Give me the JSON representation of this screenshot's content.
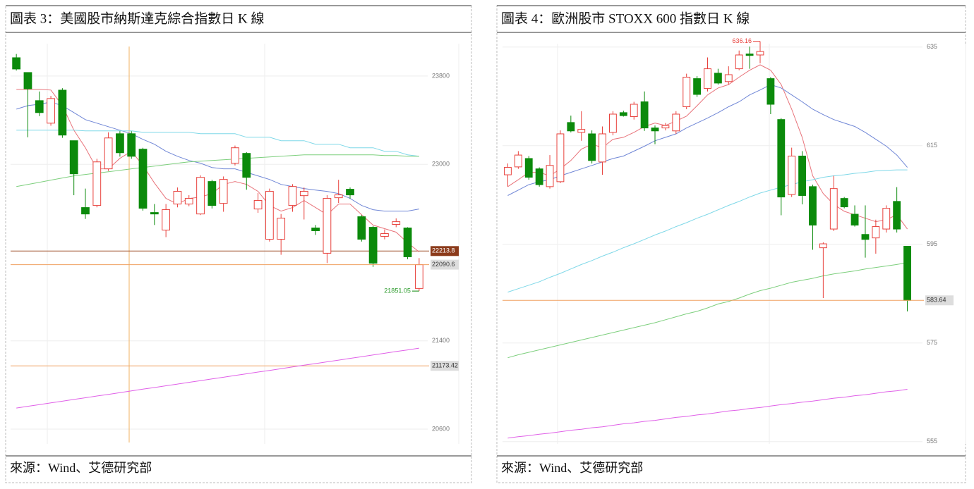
{
  "chart_data": [
    {
      "type": "candlestick",
      "title": "圖表 3：美國股市納斯達克綜合指數日 K 線",
      "source": "來源：Wind、艾德研究部",
      "ylim": [
        20402,
        24170
      ],
      "yticks": [
        20600,
        21400,
        23000,
        23800
      ],
      "grid": true,
      "up_color": "#e8413c",
      "down_color": "#0b8a0b",
      "mark_extreme": "low",
      "open": [
        23966,
        23832,
        23577,
        23373,
        23672,
        23214,
        22608,
        22627,
        22959,
        23277,
        23277,
        23137,
        22563,
        22404,
        22640,
        22640,
        22550,
        22844,
        22646,
        23010,
        23099,
        22595,
        22321,
        22321,
        22627,
        22716,
        22423,
        22194,
        22697,
        22774,
        22525,
        22429,
        22347,
        22455,
        22423,
        21875
      ],
      "high": [
        24000,
        23832,
        23660,
        23620,
        23690,
        23214,
        22780,
        23050,
        23290,
        23300,
        23300,
        23150,
        22640,
        22640,
        22790,
        22720,
        22900,
        22860,
        22890,
        23170,
        23110,
        22740,
        22780,
        22550,
        22820,
        22790,
        22450,
        22720,
        22860,
        22790,
        22540,
        22440,
        22410,
        22510,
        22430,
        22150
      ],
      "low": [
        23850,
        23245,
        23437,
        23350,
        23240,
        22720,
        22505,
        22610,
        22940,
        23070,
        23050,
        22580,
        22450,
        22340,
        22610,
        22620,
        22540,
        22600,
        22570,
        22990,
        22770,
        22560,
        22300,
        22180,
        22570,
        22500,
        22360,
        22105,
        22650,
        22690,
        22300,
        22070,
        22320,
        22430,
        22140,
        21851.05
      ],
      "close": [
        23864,
        23685,
        23469,
        23596,
        23265,
        22914,
        22550,
        23022,
        23239,
        23105,
        23073,
        22602,
        22550,
        22589,
        22755,
        22691,
        22882,
        22627,
        22863,
        23150,
        22882,
        22672,
        22755,
        22512,
        22799,
        22755,
        22398,
        22691,
        22723,
        22723,
        22321,
        22104,
        22372,
        22480,
        22162,
        22090.6
      ],
      "series": [
        {
          "color": "#e8737a",
          "values": [
            23679,
            23679,
            23679,
            23673,
            23532,
            23309,
            23150,
            22959,
            22959,
            23054,
            23118,
            22990,
            22831,
            22691,
            22640,
            22691,
            22703,
            22735,
            22818,
            22844,
            22818,
            22755,
            22627,
            22576,
            22608,
            22672,
            22608,
            22544,
            22640,
            22640,
            22544,
            22449,
            22417,
            22385,
            22289,
            22206
          ]
        },
        {
          "color": "#6f86d6",
          "values": [
            23500,
            23532,
            23545,
            23564,
            23532,
            23469,
            23405,
            23373,
            23341,
            23309,
            23277,
            23226,
            23182,
            23118,
            23073,
            23035,
            23010,
            22971,
            22959,
            22959,
            22927,
            22895,
            22863,
            22818,
            22799,
            22780,
            22767,
            22755,
            22735,
            22691,
            22627,
            22589,
            22576,
            22576,
            22576,
            22595
          ]
        },
        {
          "color": "#7fd8e8",
          "values": [
            23309,
            23309,
            23309,
            23309,
            23309,
            23309,
            23303,
            23303,
            23303,
            23303,
            23303,
            23290,
            23290,
            23290,
            23290,
            23290,
            23277,
            23277,
            23277,
            23277,
            23245,
            23245,
            23245,
            23214,
            23214,
            23214,
            23182,
            23182,
            23182,
            23150,
            23150,
            23150,
            23118,
            23118,
            23086,
            23073
          ]
        },
        {
          "color": "#7dcf7d",
          "values": [
            22799,
            22818,
            22837,
            22857,
            22876,
            22895,
            22908,
            22920,
            22933,
            22946,
            22959,
            22971,
            22984,
            22997,
            23010,
            23022,
            23029,
            23035,
            23041,
            23048,
            23054,
            23060,
            23067,
            23073,
            23080,
            23086,
            23086,
            23086,
            23086,
            23086,
            23086,
            23086,
            23080,
            23080,
            23073,
            23073
          ]
        },
        {
          "color": "#e060e8",
          "values": [
            20791,
            20807,
            20822,
            20838,
            20853,
            20869,
            20884,
            20900,
            20915,
            20931,
            20946,
            20962,
            20977,
            20993,
            21008,
            21024,
            21039,
            21055,
            21070,
            21086,
            21101,
            21117,
            21132,
            21148,
            21163,
            21179,
            21194,
            21210,
            21225,
            21241,
            21256,
            21272,
            21287,
            21303,
            21318,
            21334
          ]
        }
      ],
      "hlines": [
        {
          "value": 22213.8,
          "color": "#a0522d",
          "tag_color": "#8b3a1a"
        },
        {
          "value": 21173.42,
          "color": "#f0a060",
          "tag_color": "#dddddd"
        }
      ],
      "last_price_line": {
        "color": "#f0a060",
        "tag_color": "#dddddd"
      }
    },
    {
      "type": "candlestick",
      "title": "圖表 4：歐洲股市 STOXX 600 指數日 K 線",
      "source": "來源：Wind、艾德研究部",
      "ylim": [
        553.1,
        637.4
      ],
      "yticks": [
        555,
        575,
        595,
        615,
        635
      ],
      "grid": true,
      "up_color": "#e8413c",
      "down_color": "#0b8a0b",
      "mark_extreme": "high",
      "open": [
        609.1,
        610.7,
        612.4,
        610.3,
        606.7,
        607.7,
        619.7,
        617.7,
        617.4,
        611.7,
        617.7,
        621.7,
        620.9,
        623.9,
        618.6,
        618.6,
        618.0,
        622.9,
        628.6,
        626.6,
        629.7,
        628.0,
        630.6,
        633.6,
        633.4,
        628.6,
        620.3,
        605.1,
        612.9,
        606.7,
        594.3,
        598.1,
        604.3,
        601.1,
        597.0,
        596.3,
        598.1,
        603.7,
        594.6
      ],
      "high": [
        611.4,
        613.9,
        612.9,
        610.6,
        613.1,
        618.1,
        621.1,
        622.0,
        618.1,
        618.9,
        622.0,
        622.1,
        623.9,
        626.0,
        619.1,
        619.6,
        622.0,
        629.6,
        629.1,
        632.9,
        630.6,
        631.1,
        634.3,
        635.1,
        636.16,
        628.9,
        620.6,
        614.6,
        613.9,
        607.1,
        595.4,
        608.9,
        604.6,
        602.9,
        602.9,
        600.0,
        602.9,
        606.6,
        594.6
      ],
      "low": [
        606.7,
        610.3,
        608.1,
        606.7,
        606.3,
        607.4,
        617.7,
        616.0,
        611.4,
        609.1,
        617.1,
        620.9,
        620.3,
        618.0,
        615.3,
        618.1,
        617.4,
        622.4,
        624.9,
        626.0,
        627.4,
        627.4,
        630.3,
        630.6,
        631.7,
        621.4,
        600.9,
        604.6,
        603.1,
        593.9,
        584.1,
        597.7,
        602.3,
        598.6,
        592.3,
        593.1,
        597.4,
        597.4,
        581.4
      ],
      "close": [
        610.6,
        613.1,
        608.6,
        607.1,
        611.0,
        617.4,
        618.0,
        618.3,
        612.0,
        617.4,
        621.4,
        621.1,
        623.4,
        618.6,
        618.0,
        619.1,
        621.4,
        628.9,
        625.4,
        630.6,
        627.7,
        629.4,
        633.4,
        633.3,
        634.1,
        623.4,
        604.6,
        612.9,
        604.9,
        598.9,
        595.1,
        606.3,
        602.6,
        598.9,
        596.0,
        598.6,
        602.3,
        598.1,
        583.64
      ],
      "series": [
        {
          "color": "#e8737a",
          "values": [
            606.7,
            608.1,
            609.6,
            609.6,
            608.9,
            610.3,
            612.0,
            614.3,
            615.3,
            614.6,
            616.3,
            616.7,
            617.7,
            618.9,
            619.6,
            619.1,
            620.0,
            621.0,
            623.1,
            625.3,
            626.7,
            627.4,
            628.9,
            630.3,
            631.4,
            630.3,
            627.4,
            622.4,
            616.7,
            608.9,
            605.3,
            603.1,
            601.7,
            601.0,
            600.3,
            599.6,
            600.0,
            601.0,
            598.1
          ]
        },
        {
          "color": "#6f86d6",
          "values": [
            604.9,
            606.0,
            607.1,
            607.7,
            608.1,
            608.9,
            609.6,
            610.3,
            611.0,
            611.7,
            612.4,
            612.9,
            613.9,
            614.9,
            616.0,
            616.7,
            617.4,
            618.6,
            619.6,
            620.6,
            621.7,
            622.9,
            623.9,
            625.3,
            626.3,
            627.4,
            626.7,
            625.3,
            623.9,
            622.4,
            621.3,
            620.3,
            619.6,
            618.9,
            617.7,
            616.3,
            614.9,
            613.1,
            610.6
          ]
        },
        {
          "color": "#7fd8e8",
          "values": [
            585.3,
            586.0,
            586.7,
            587.4,
            588.3,
            589.1,
            590.0,
            590.9,
            591.7,
            592.6,
            593.4,
            594.3,
            595.1,
            596.0,
            596.9,
            597.7,
            598.6,
            599.4,
            600.3,
            601.1,
            602.0,
            602.9,
            603.7,
            604.6,
            605.4,
            606.0,
            606.6,
            607.1,
            607.7,
            608.1,
            608.6,
            608.9,
            609.1,
            609.4,
            609.6,
            609.9,
            610.0,
            610.1,
            610.1
          ]
        },
        {
          "color": "#7dcf7d",
          "values": [
            572.0,
            572.6,
            573.1,
            573.6,
            574.1,
            574.6,
            575.1,
            575.6,
            576.1,
            576.6,
            577.1,
            577.6,
            578.1,
            578.6,
            579.1,
            579.7,
            580.3,
            580.9,
            581.4,
            582.1,
            582.9,
            583.4,
            584.1,
            584.9,
            585.6,
            586.1,
            586.7,
            587.3,
            587.7,
            588.1,
            588.6,
            589.0,
            589.3,
            589.6,
            590.0,
            590.3,
            590.6,
            590.9,
            591.3
          ]
        },
        {
          "color": "#e060e8",
          "values": [
            555.7,
            556.0,
            556.2,
            556.5,
            556.7,
            557.0,
            557.3,
            557.5,
            557.8,
            558.0,
            558.3,
            558.6,
            558.8,
            559.1,
            559.3,
            559.6,
            559.9,
            560.1,
            560.4,
            560.6,
            560.9,
            561.2,
            561.4,
            561.7,
            561.9,
            562.2,
            562.5,
            562.7,
            563.0,
            563.2,
            563.5,
            563.8,
            564.0,
            564.3,
            564.5,
            564.8,
            565.1,
            565.3,
            565.6
          ]
        }
      ],
      "hlines": [],
      "last_price_line": {
        "color": "#f0a060",
        "tag_color": "#dddddd"
      }
    }
  ]
}
